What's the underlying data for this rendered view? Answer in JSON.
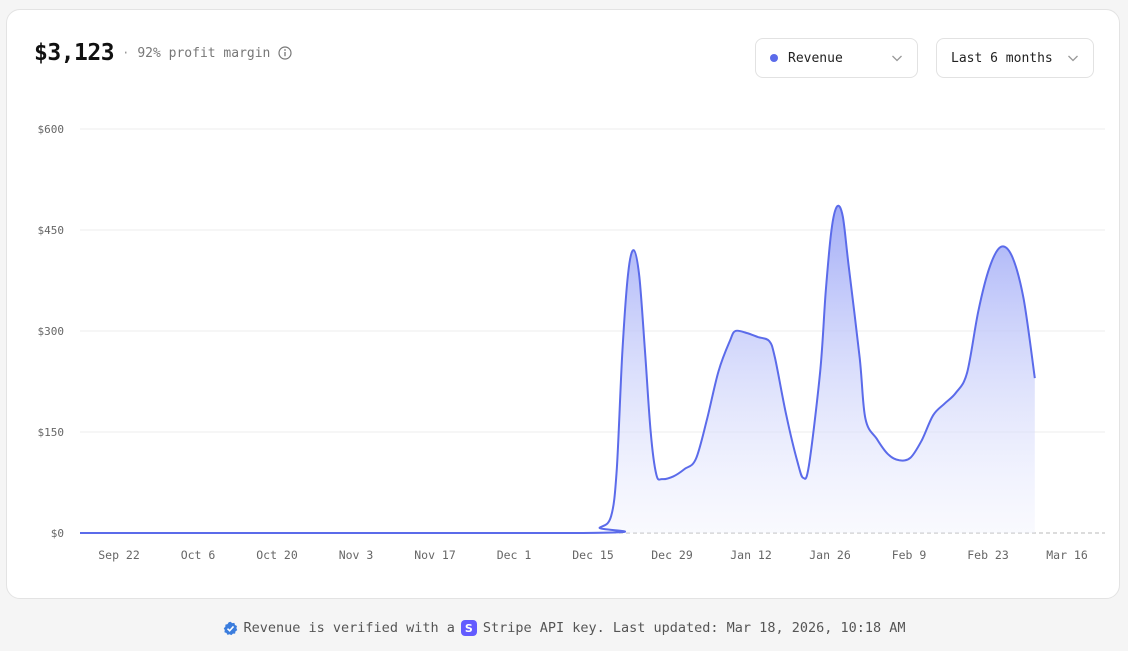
{
  "summary": {
    "amount": "$3,123",
    "separator": "·",
    "margin_text": "92% profit margin"
  },
  "controls": {
    "series_select": "Revenue",
    "range_select": "Last 6 months"
  },
  "colors": {
    "accent": "#5b6bea",
    "fill_top": "#a3adf7",
    "grid": "#eeeeee"
  },
  "chart_data": {
    "type": "area",
    "series": [
      {
        "name": "Revenue",
        "points": [
          [
            "2025-09-15",
            0
          ],
          [
            "2025-12-13",
            0
          ],
          [
            "2025-12-16",
            8
          ],
          [
            "2025-12-18",
            25
          ],
          [
            "2025-12-19",
            95
          ],
          [
            "2025-12-20",
            270
          ],
          [
            "2025-12-21",
            385
          ],
          [
            "2025-12-22",
            420
          ],
          [
            "2025-12-23",
            380
          ],
          [
            "2025-12-24",
            270
          ],
          [
            "2025-12-25",
            150
          ],
          [
            "2025-12-26",
            87
          ],
          [
            "2025-12-27",
            80
          ],
          [
            "2025-12-29",
            84
          ],
          [
            "2025-12-31",
            95
          ],
          [
            "2026-01-02",
            110
          ],
          [
            "2026-01-04",
            170
          ],
          [
            "2026-01-06",
            240
          ],
          [
            "2026-01-08",
            285
          ],
          [
            "2026-01-09",
            300
          ],
          [
            "2026-01-11",
            297
          ],
          [
            "2026-01-13",
            291
          ],
          [
            "2026-01-15",
            285
          ],
          [
            "2026-01-16",
            260
          ],
          [
            "2026-01-18",
            175
          ],
          [
            "2026-01-20",
            105
          ],
          [
            "2026-01-21",
            82
          ],
          [
            "2026-01-22",
            100
          ],
          [
            "2026-01-24",
            240
          ],
          [
            "2026-01-25",
            360
          ],
          [
            "2026-01-26",
            450
          ],
          [
            "2026-01-27",
            485
          ],
          [
            "2026-01-28",
            470
          ],
          [
            "2026-01-29",
            400
          ],
          [
            "2026-01-31",
            260
          ],
          [
            "2026-02-01",
            170
          ],
          [
            "2026-02-03",
            140
          ],
          [
            "2026-02-05",
            117
          ],
          [
            "2026-02-07",
            108
          ],
          [
            "2026-02-09",
            112
          ],
          [
            "2026-02-11",
            138
          ],
          [
            "2026-02-13",
            175
          ],
          [
            "2026-02-15",
            192
          ],
          [
            "2026-02-17",
            208
          ],
          [
            "2026-02-19",
            238
          ],
          [
            "2026-02-21",
            330
          ],
          [
            "2026-02-23",
            395
          ],
          [
            "2026-02-25",
            425
          ],
          [
            "2026-02-27",
            410
          ],
          [
            "2026-03-01",
            348
          ],
          [
            "2026-03-03",
            230
          ]
        ]
      }
    ],
    "x_ticks": [
      "Sep 22",
      "Oct 6",
      "Oct 20",
      "Nov 3",
      "Nov 17",
      "Dec 1",
      "Dec 15",
      "Dec 29",
      "Jan 12",
      "Jan 26",
      "Feb 9",
      "Feb 23",
      "Mar 16"
    ],
    "y_ticks": [
      "$0",
      "$150",
      "$300",
      "$450",
      "$600"
    ],
    "ylim": [
      0,
      600
    ],
    "grid": true,
    "legend": "none"
  },
  "footer": {
    "text_before": "Revenue is verified with a",
    "badge_letter": "S",
    "text_after": "Stripe API key. Last updated: Mar 18, 2026, 10:18 AM"
  }
}
